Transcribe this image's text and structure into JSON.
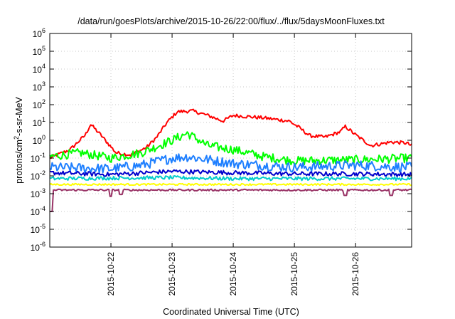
{
  "chart_data": {
    "type": "line",
    "title": "/data/run/goesPlots/archive/2015-10-26/22:00/flux/../flux/5daysMoonFluxes.txt",
    "xlabel": "Coordinated Universal Time (UTC)",
    "ylabel": "protons/cm2-s-sr-MeV",
    "ylabel_parts": {
      "before": "protons/cm",
      "sup": "2",
      "after": "-s-sr-MeV"
    },
    "yscale": "log",
    "ylim_exp": [
      -6,
      6
    ],
    "ytick_exponents": [
      "-6",
      "-5",
      "-4",
      "-3",
      "-2",
      "-1",
      "0",
      "1",
      "2",
      "3",
      "4",
      "5",
      "6"
    ],
    "ytick_base": "10",
    "x_start": "2015-10-21 00:00",
    "x_end": "2015-10-26 22:00",
    "xticks": [
      "2015-10-22",
      "2015-10-23",
      "2015-10-24",
      "2015-10-25",
      "2015-10-26"
    ],
    "grid": true,
    "series": [
      {
        "color": "#ff0000",
        "noise": 0.1,
        "points": [
          [
            "2015-10-21 00:00",
            0.1
          ],
          [
            "2015-10-21 08:00",
            0.3
          ],
          [
            "2015-10-21 14:00",
            2
          ],
          [
            "2015-10-21 16:00",
            8
          ],
          [
            "2015-10-21 20:00",
            2
          ],
          [
            "2015-10-22 02:00",
            0.2
          ],
          [
            "2015-10-22 08:00",
            0.15
          ],
          [
            "2015-10-22 14:00",
            0.4
          ],
          [
            "2015-10-22 18:00",
            1.5
          ],
          [
            "2015-10-22 22:00",
            10
          ],
          [
            "2015-10-23 02:00",
            40
          ],
          [
            "2015-10-23 08:00",
            45
          ],
          [
            "2015-10-23 14:00",
            25
          ],
          [
            "2015-10-23 20:00",
            12
          ],
          [
            "2015-10-24 00:00",
            25
          ],
          [
            "2015-10-24 12:00",
            18
          ],
          [
            "2015-10-24 22:00",
            12
          ],
          [
            "2015-10-25 02:00",
            5
          ],
          [
            "2015-10-25 06:00",
            1.8
          ],
          [
            "2015-10-25 12:00",
            1.5
          ],
          [
            "2015-10-25 18:00",
            3
          ],
          [
            "2015-10-25 20:00",
            6
          ],
          [
            "2015-10-26 00:00",
            2
          ],
          [
            "2015-10-26 06:00",
            0.5
          ],
          [
            "2015-10-26 14:00",
            0.8
          ],
          [
            "2015-10-26 20:00",
            0.7
          ],
          [
            "2015-10-26 22:00",
            0.5
          ]
        ]
      },
      {
        "color": "#00ff00",
        "noise": 0.25,
        "points": [
          [
            "2015-10-21 00:00",
            0.12
          ],
          [
            "2015-10-21 12:00",
            0.2
          ],
          [
            "2015-10-22 00:00",
            0.1
          ],
          [
            "2015-10-22 12:00",
            0.2
          ],
          [
            "2015-10-23 00:00",
            1.0
          ],
          [
            "2015-10-23 06:00",
            2.5
          ],
          [
            "2015-10-23 14:00",
            0.5
          ],
          [
            "2015-10-24 00:00",
            0.3
          ],
          [
            "2015-10-24 12:00",
            0.12
          ],
          [
            "2015-10-25 00:00",
            0.07
          ],
          [
            "2015-10-26 00:00",
            0.08
          ],
          [
            "2015-10-26 22:00",
            0.1
          ]
        ]
      },
      {
        "color": "#1e7fff",
        "noise": 0.28,
        "points": [
          [
            "2015-10-21 00:00",
            0.03
          ],
          [
            "2015-10-22 00:00",
            0.025
          ],
          [
            "2015-10-22 12:00",
            0.04
          ],
          [
            "2015-10-23 00:00",
            0.1
          ],
          [
            "2015-10-23 06:00",
            0.12
          ],
          [
            "2015-10-24 00:00",
            0.05
          ],
          [
            "2015-10-25 00:00",
            0.03
          ],
          [
            "2015-10-26 00:00",
            0.04
          ],
          [
            "2015-10-26 22:00",
            0.03
          ]
        ]
      },
      {
        "color": "#0000cc",
        "noise": 0.12,
        "points": [
          [
            "2015-10-21 00:00",
            0.015
          ],
          [
            "2015-10-22 00:00",
            0.012
          ],
          [
            "2015-10-23 00:00",
            0.018
          ],
          [
            "2015-10-24 00:00",
            0.015
          ],
          [
            "2015-10-25 00:00",
            0.013
          ],
          [
            "2015-10-26 00:00",
            0.013
          ],
          [
            "2015-10-26 22:00",
            0.012
          ]
        ]
      },
      {
        "color": "#00cccc",
        "noise": 0.1,
        "points": [
          [
            "2015-10-21 00:00",
            0.007
          ],
          [
            "2015-10-23 00:00",
            0.008
          ],
          [
            "2015-10-24 00:00",
            0.007
          ],
          [
            "2015-10-26 22:00",
            0.007
          ]
        ]
      },
      {
        "color": "#ffff00",
        "noise": 0.05,
        "points": [
          [
            "2015-10-21 00:00",
            0.0033
          ],
          [
            "2015-10-26 22:00",
            0.0033
          ]
        ]
      },
      {
        "color": "#993366",
        "noise": 0.05,
        "points": [
          [
            "2015-10-21 00:00",
            0.0016
          ],
          [
            "2015-10-26 22:00",
            0.0016
          ]
        ],
        "dips": [
          [
            "2015-10-21 00:30",
            0.0001
          ],
          [
            "2015-10-22 00:00",
            0.0007
          ],
          [
            "2015-10-22 04:00",
            0.0009
          ],
          [
            "2015-10-25 20:00",
            0.0008
          ],
          [
            "2015-10-26 14:00",
            0.0008
          ]
        ]
      }
    ]
  }
}
